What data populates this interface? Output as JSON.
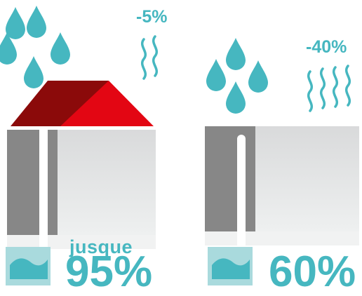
{
  "left_scene": {
    "evaporation_label": "-5%",
    "retention_prefix": "jusque",
    "retention_value": "95%"
  },
  "right_scene": {
    "evaporation_label": "-40%",
    "retention_value": "60%"
  },
  "colors": {
    "water": "#46b7c0",
    "roof_dark": "#8b0a0a",
    "roof_light": "#e30613",
    "wall_gray": "#d9dadb",
    "column_gray": "#878787",
    "tank_fill": "#a9dadd"
  },
  "icons": [
    "raindrop-icon",
    "evaporation-wave-icon",
    "tank-water-icon"
  ]
}
